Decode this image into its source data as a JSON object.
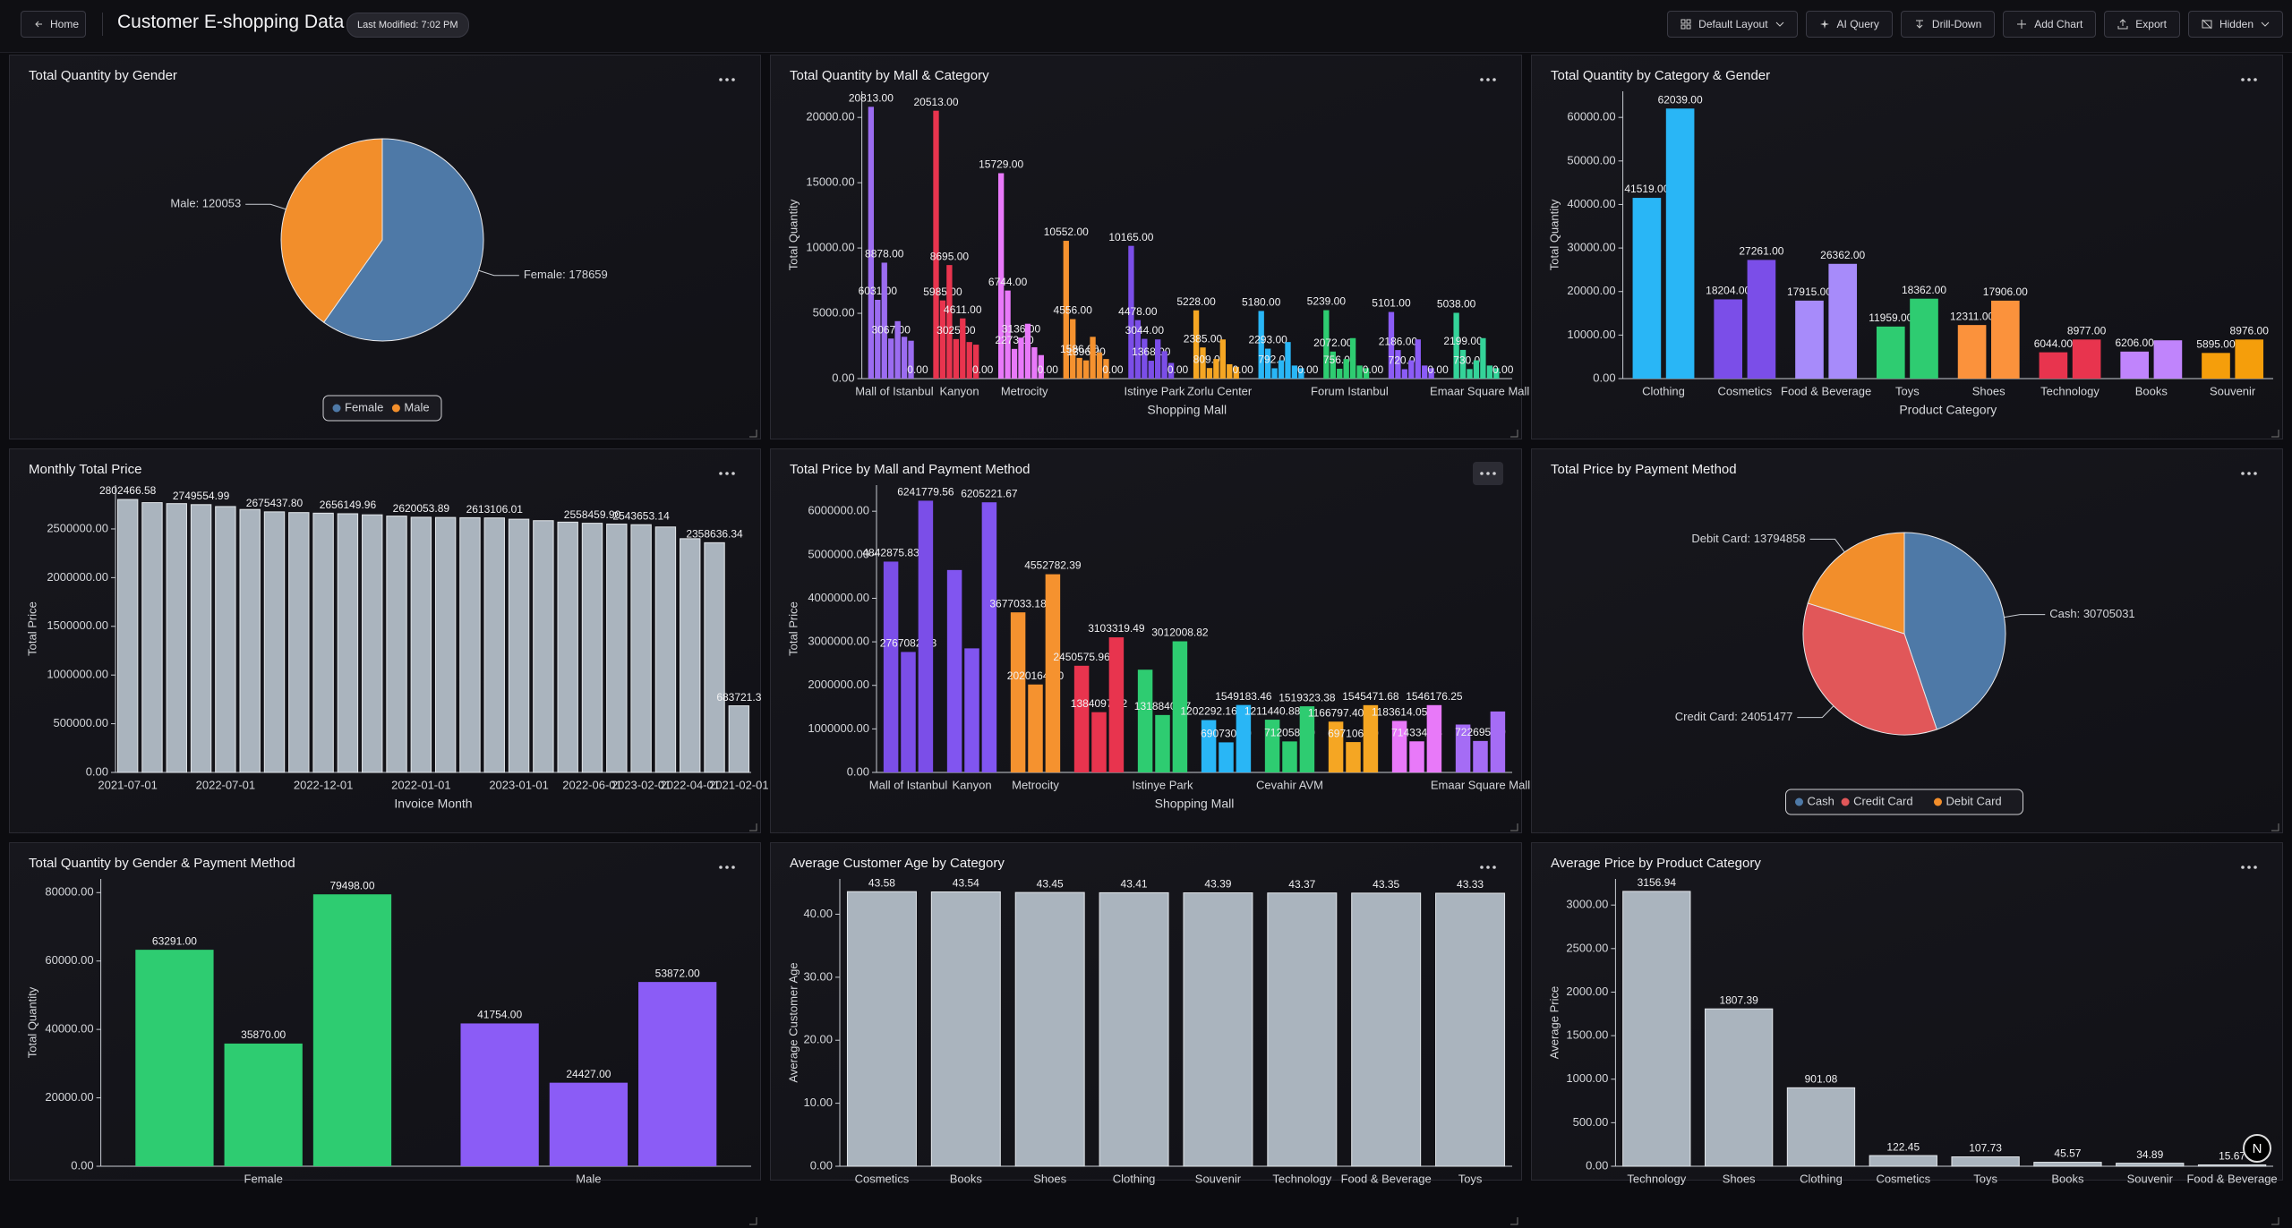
{
  "header": {
    "home": "Home",
    "title": "Customer E-shopping Data",
    "last_modified": "Last Modified: 7:02 PM",
    "buttons": [
      "Default Layout",
      "AI Query",
      "Drill-Down",
      "Add Chart",
      "Export",
      "Hidden"
    ]
  },
  "badge": "N",
  "chart_data": [
    {
      "type": "pie",
      "title": "Total Quantity by Gender",
      "categories": [
        "Female",
        "Male"
      ],
      "values": [
        178659,
        120053
      ],
      "value_labels": [
        "Female: 178659",
        "Male: 120053"
      ],
      "colors": [
        "#4e79a7",
        "#f28e2b"
      ],
      "legend": true
    },
    {
      "type": "bar",
      "title": "Total Quantity by Mall & Category",
      "xlabel": "Shopping Mall",
      "ylabel": "Total Quantity",
      "categories": [
        "Mall of Istanbul",
        "Kanyon",
        "Metrocity",
        null,
        "Istinye Park",
        "Zorlu Center",
        null,
        "Forum Istanbul",
        null,
        "Emaar Square Mall"
      ],
      "colors": [
        "#9b6cf0",
        "#e8344e",
        "#e879f9",
        "#f5922f",
        "#7b4ee8",
        "#f5a623",
        "#29b6f6",
        "#2ecc71",
        "#8b5cf6",
        "#34d399"
      ],
      "series": [
        {
          "values": [
            20813,
            20513,
            15729,
            10552,
            10165,
            5228,
            5180,
            5239,
            5101,
            5038
          ],
          "value_labels": [
            "20813.00",
            "20513.00",
            "15729.00",
            "10552.00",
            "10165.00",
            "5228.00",
            "5180.00",
            "5239.00",
            "5101.00",
            "5038.00"
          ]
        },
        {
          "values": [
            6031,
            5985,
            6744,
            4556,
            4478,
            2385,
            2293,
            2072,
            2186,
            2199
          ],
          "value_labels": [
            "6031.00",
            "5985.00",
            "6744.00",
            "4556.00",
            "4478.00",
            "2385.00",
            "2293.00",
            "2072.00",
            "2186.00",
            "2199.00"
          ]
        },
        {
          "values": [
            8878,
            8695,
            2273,
            1586,
            3044,
            809,
            792,
            756,
            720,
            730
          ],
          "value_labels": [
            "8878.00",
            "8695.00",
            "2273.00",
            "1586.00",
            "3044.00",
            "809.00",
            "792.00",
            "756.00",
            "720.00",
            "730.00"
          ]
        },
        {
          "values": [
            3067,
            3025,
            3136,
            1396,
            1368,
            1500,
            1400,
            1500,
            1400,
            1400
          ],
          "value_labels": [
            "3067.00",
            "3025.00",
            "3136.00",
            "1396.00",
            "1368.00",
            null,
            null,
            null,
            null,
            null
          ]
        },
        {
          "values": [
            4400,
            4611,
            4200,
            3200,
            3000,
            3000,
            2800,
            3100,
            3000,
            3100
          ],
          "value_labels": [
            null,
            "4611.00",
            null,
            null,
            null,
            null,
            null,
            null,
            null,
            null
          ]
        },
        {
          "values": [
            3200,
            2800,
            2400,
            2000,
            2100,
            1100,
            1000,
            1000,
            1000,
            1000
          ]
        },
        {
          "values": [
            2900,
            2600,
            1800,
            1500,
            1200,
            900,
            800,
            800,
            800,
            800
          ]
        },
        {
          "values": [
            0,
            0,
            0,
            0,
            0,
            0,
            0,
            0,
            0,
            0
          ],
          "value_labels": [
            "0.00",
            "0.00",
            "0.00",
            "0.00",
            "0.00",
            "0.00",
            "0.00",
            "0.00",
            "0.00",
            "0.00"
          ]
        }
      ],
      "ylim": [
        0,
        22000
      ],
      "yticks": [
        {
          "value": 0,
          "label": "0.00"
        },
        {
          "value": 5000,
          "label": "5000.00"
        },
        {
          "value": 10000,
          "label": "10000.00"
        },
        {
          "value": 15000,
          "label": "15000.00"
        },
        {
          "value": 20000,
          "label": "20000.00"
        }
      ]
    },
    {
      "type": "bar",
      "title": "Total Quantity by Category & Gender",
      "xlabel": "Product Category",
      "ylabel": "Total Quantity",
      "categories": [
        "Clothing",
        "Cosmetics",
        "Food & Beverage",
        "Toys",
        "Shoes",
        "Technology",
        "Books",
        "Souvenir"
      ],
      "colors": [
        "#29b6f6",
        "#7b4ee8",
        "#a78bfa",
        "#2ecc71",
        "#fb923c",
        "#e8344e",
        "#c084fc",
        "#f59e0b"
      ],
      "series": [
        {
          "values": [
            41519,
            18204,
            17915,
            11959,
            12311,
            6044,
            6206,
            5895
          ],
          "value_labels": [
            "41519.00",
            "18204.00",
            "17915.00",
            "11959.00",
            "12311.00",
            "6044.00",
            "6206.00",
            "5895.00"
          ]
        },
        {
          "values": [
            62039,
            27261,
            26362,
            18362,
            17906,
            8977,
            8800,
            8976
          ],
          "value_labels": [
            "62039.00",
            "27261.00",
            "26362.00",
            "18362.00",
            "17906.00",
            "8977.00",
            null,
            "8976.00"
          ]
        }
      ],
      "ylim": [
        0,
        66000
      ],
      "yticks": [
        {
          "value": 0,
          "label": "0.00"
        },
        {
          "value": 10000,
          "label": "10000.00"
        },
        {
          "value": 20000,
          "label": "20000.00"
        },
        {
          "value": 30000,
          "label": "30000.00"
        },
        {
          "value": 40000,
          "label": "40000.00"
        },
        {
          "value": 50000,
          "label": "50000.00"
        },
        {
          "value": 60000,
          "label": "60000.00"
        }
      ]
    },
    {
      "type": "bar",
      "title": "Monthly Total Price",
      "xlabel": "Invoice Month",
      "ylabel": "Total Price",
      "categories": [
        "2021-07-01",
        null,
        null,
        null,
        "2022-07-01",
        null,
        null,
        null,
        "2022-12-01",
        null,
        null,
        null,
        "2022-01-01",
        null,
        null,
        null,
        "2023-01-01",
        null,
        null,
        "2022-06-01",
        null,
        "2023-02-01",
        null,
        "2022-04-01",
        null,
        "2021-02-01"
      ],
      "series": [
        {
          "color": "#aab4be",
          "values": [
            2802466.58,
            2770000,
            2760000,
            2749554.99,
            2730000,
            2700000,
            2675437.8,
            2668000,
            2662000,
            2656149.96,
            2645000,
            2632000,
            2620053.89,
            2618000,
            2615500,
            2613106.01,
            2600000,
            2585000,
            2570000,
            2558459.9,
            2550000,
            2543653.14,
            2520000,
            2400000,
            2358636.34,
            683721.3
          ],
          "value_labels": [
            "2802466.58",
            null,
            null,
            "2749554.99",
            null,
            null,
            "2675437.80",
            null,
            null,
            "2656149.96",
            null,
            null,
            "2620053.89",
            null,
            null,
            "2613106.01",
            null,
            null,
            null,
            "2558459.90",
            null,
            "2543653.14",
            null,
            null,
            "2358636.34",
            "683721.3"
          ]
        }
      ],
      "ylim": [
        0,
        2950000
      ],
      "yticks": [
        {
          "value": 0,
          "label": "0.00"
        },
        {
          "value": 500000,
          "label": "500000.00"
        },
        {
          "value": 1000000,
          "label": "1000000.00"
        },
        {
          "value": 1500000,
          "label": "1500000.00"
        },
        {
          "value": 2000000,
          "label": "2000000.00"
        },
        {
          "value": 2500000,
          "label": "2500000.00"
        }
      ]
    },
    {
      "type": "bar",
      "title": "Total Price by Mall and Payment Method",
      "xlabel": "Shopping Mall",
      "ylabel": "Total Price",
      "categories": [
        "Mall of Istanbul",
        "Kanyon",
        "Metrocity",
        null,
        "Istinye Park",
        null,
        "Cevahir AVM",
        null,
        null,
        "Emaar Square Mall"
      ],
      "colors": [
        "#7b4ee8",
        "#8155f0",
        "#f5922f",
        "#e8344e",
        "#2ecc71",
        "#29b6f6",
        "#2ecc71",
        "#f5a623",
        "#e879f9",
        "#a56cf5"
      ],
      "series": [
        {
          "values": [
            4842875.83,
            4650000,
            3677033.18,
            2450575.96,
            2360000,
            1202292.16,
            1211440.88,
            1166797.4,
            1183614.05,
            1100000
          ],
          "value_labels": [
            "4842875.83",
            null,
            "3677033.18",
            "2450575.96",
            null,
            "1202292.16",
            "1211440.88",
            "1166797.40",
            "1183614.05",
            null
          ]
        },
        {
          "values": [
            2767082.23,
            2850000,
            2020164.6,
            1384097.52,
            1318840.67,
            690730.79,
            712058.3,
            697106.99,
            714334.68,
            722695.49
          ],
          "value_labels": [
            "2767082.23",
            null,
            "2020164.60",
            "1384097.52",
            "1318840.67",
            "690730.79",
            "712058.30",
            "697106.99",
            "714334.68",
            "722695.49"
          ]
        },
        {
          "values": [
            6241779.56,
            6205221.67,
            4552782.39,
            3103319.49,
            3012008.82,
            1549183.46,
            1519323.38,
            1545471.68,
            1546176.25,
            1400000
          ],
          "value_labels": [
            "6241779.56",
            "6205221.67",
            "4552782.39",
            "3103319.49",
            "3012008.82",
            "1549183.46",
            "1519323.38",
            "1545471.68",
            "1546176.25",
            null
          ]
        }
      ],
      "ylim": [
        0,
        6600000
      ],
      "yticks": [
        {
          "value": 0,
          "label": "0.00"
        },
        {
          "value": 1000000,
          "label": "1000000.00"
        },
        {
          "value": 2000000,
          "label": "2000000.00"
        },
        {
          "value": 3000000,
          "label": "3000000.00"
        },
        {
          "value": 4000000,
          "label": "4000000.00"
        },
        {
          "value": 5000000,
          "label": "5000000.00"
        },
        {
          "value": 6000000,
          "label": "6000000.00"
        }
      ]
    },
    {
      "type": "pie",
      "title": "Total Price by Payment Method",
      "categories": [
        "Cash",
        "Credit Card",
        "Debit Card"
      ],
      "values": [
        30705031,
        24051477,
        13794858
      ],
      "value_labels": [
        "Cash: 30705031",
        "Credit Card: 24051477",
        "Debit Card: 13794858"
      ],
      "colors": [
        "#4e79a7",
        "#e15759",
        "#f28e2b"
      ],
      "legend": true
    },
    {
      "type": "bar",
      "title": "Total Quantity by Gender & Payment Method",
      "ylabel": "Total Quantity",
      "categories": [
        "Female",
        "Male"
      ],
      "colors": [
        "#2ecc71",
        "#8b5cf6"
      ],
      "series": [
        {
          "values": [
            63291,
            41754
          ],
          "value_labels": [
            "63291.00",
            "41754.00"
          ]
        },
        {
          "values": [
            35870,
            24427
          ],
          "value_labels": [
            "35870.00",
            "24427.00"
          ]
        },
        {
          "values": [
            79498,
            53872
          ],
          "value_labels": [
            "79498.00",
            "53872.00"
          ]
        }
      ],
      "ylim": [
        0,
        84000
      ],
      "yticks": [
        {
          "value": 0,
          "label": "0.00"
        },
        {
          "value": 20000,
          "label": "20000.00"
        },
        {
          "value": 40000,
          "label": "40000.00"
        },
        {
          "value": 60000,
          "label": "60000.00"
        },
        {
          "value": 80000,
          "label": "80000.00"
        }
      ]
    },
    {
      "type": "bar",
      "title": "Average Customer Age by Category",
      "ylabel": "Average Customer Age",
      "categories": [
        "Cosmetics",
        "Books",
        "Shoes",
        "Clothing",
        "Souvenir",
        "Technology",
        "Food & Beverage",
        "Toys"
      ],
      "series": [
        {
          "color": "#aab4be",
          "values": [
            43.58,
            43.54,
            43.45,
            43.41,
            43.39,
            43.37,
            43.35,
            43.33
          ],
          "value_labels": [
            "43.58",
            "43.54",
            "43.45",
            "43.41",
            "43.39",
            "43.37",
            "43.35",
            "43.33"
          ]
        }
      ],
      "ylim": [
        0,
        45.6
      ],
      "yticks": [
        {
          "value": 0,
          "label": "0.00"
        },
        {
          "value": 10,
          "label": "10.00"
        },
        {
          "value": 20,
          "label": "20.00"
        },
        {
          "value": 30,
          "label": "30.00"
        },
        {
          "value": 40,
          "label": "40.00"
        }
      ]
    },
    {
      "type": "bar",
      "title": "Average Price by Product Category",
      "ylabel": "Average Price",
      "categories": [
        "Technology",
        "Shoes",
        "Clothing",
        "Cosmetics",
        "Toys",
        "Books",
        "Souvenir",
        "Food & Beverage"
      ],
      "series": [
        {
          "color": "#aab4be",
          "values": [
            3156.94,
            1807.39,
            901.08,
            122.45,
            107.73,
            45.57,
            34.89,
            15.67
          ],
          "value_labels": [
            "3156.94",
            "1807.39",
            "901.08",
            "122.45",
            "107.73",
            "45.57",
            "34.89",
            "15.67"
          ]
        }
      ],
      "ylim": [
        0,
        3300
      ],
      "yticks": [
        {
          "value": 0,
          "label": "0.00"
        },
        {
          "value": 500,
          "label": "500.00"
        },
        {
          "value": 1000,
          "label": "1000.00"
        },
        {
          "value": 1500,
          "label": "1500.00"
        },
        {
          "value": 2000,
          "label": "2000.00"
        },
        {
          "value": 2500,
          "label": "2500.00"
        },
        {
          "value": 3000,
          "label": "3000.00"
        }
      ]
    }
  ]
}
